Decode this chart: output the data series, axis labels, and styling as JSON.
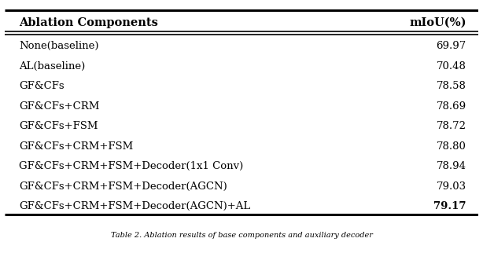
{
  "title_col1": "Ablation Components",
  "title_col2": "mIoU(%)",
  "rows": [
    [
      "None(baseline)",
      "69.97",
      false
    ],
    [
      "AL(baseline)",
      "70.48",
      false
    ],
    [
      "GF&CFs",
      "78.58",
      false
    ],
    [
      "GF&CFs+CRM",
      "78.69",
      false
    ],
    [
      "GF&CFs+FSM",
      "78.72",
      false
    ],
    [
      "GF&CFs+CRM+FSM",
      "78.80",
      false
    ],
    [
      "GF&CFs+CRM+FSM+Decoder(1x1 Conv)",
      "78.94",
      false
    ],
    [
      "GF&CFs+CRM+FSM+Decoder(AGCN)",
      "79.03",
      false
    ],
    [
      "GF&CFs+CRM+FSM+Decoder(AGCN)+AL",
      "79.17",
      true
    ]
  ],
  "background_color": "#ffffff",
  "text_color": "#000000",
  "font_size_header": 10.5,
  "font_size_body": 9.5,
  "font_size_caption": 7.0,
  "caption": "Table 2. Ablation results of base components and auxiliary decoder"
}
